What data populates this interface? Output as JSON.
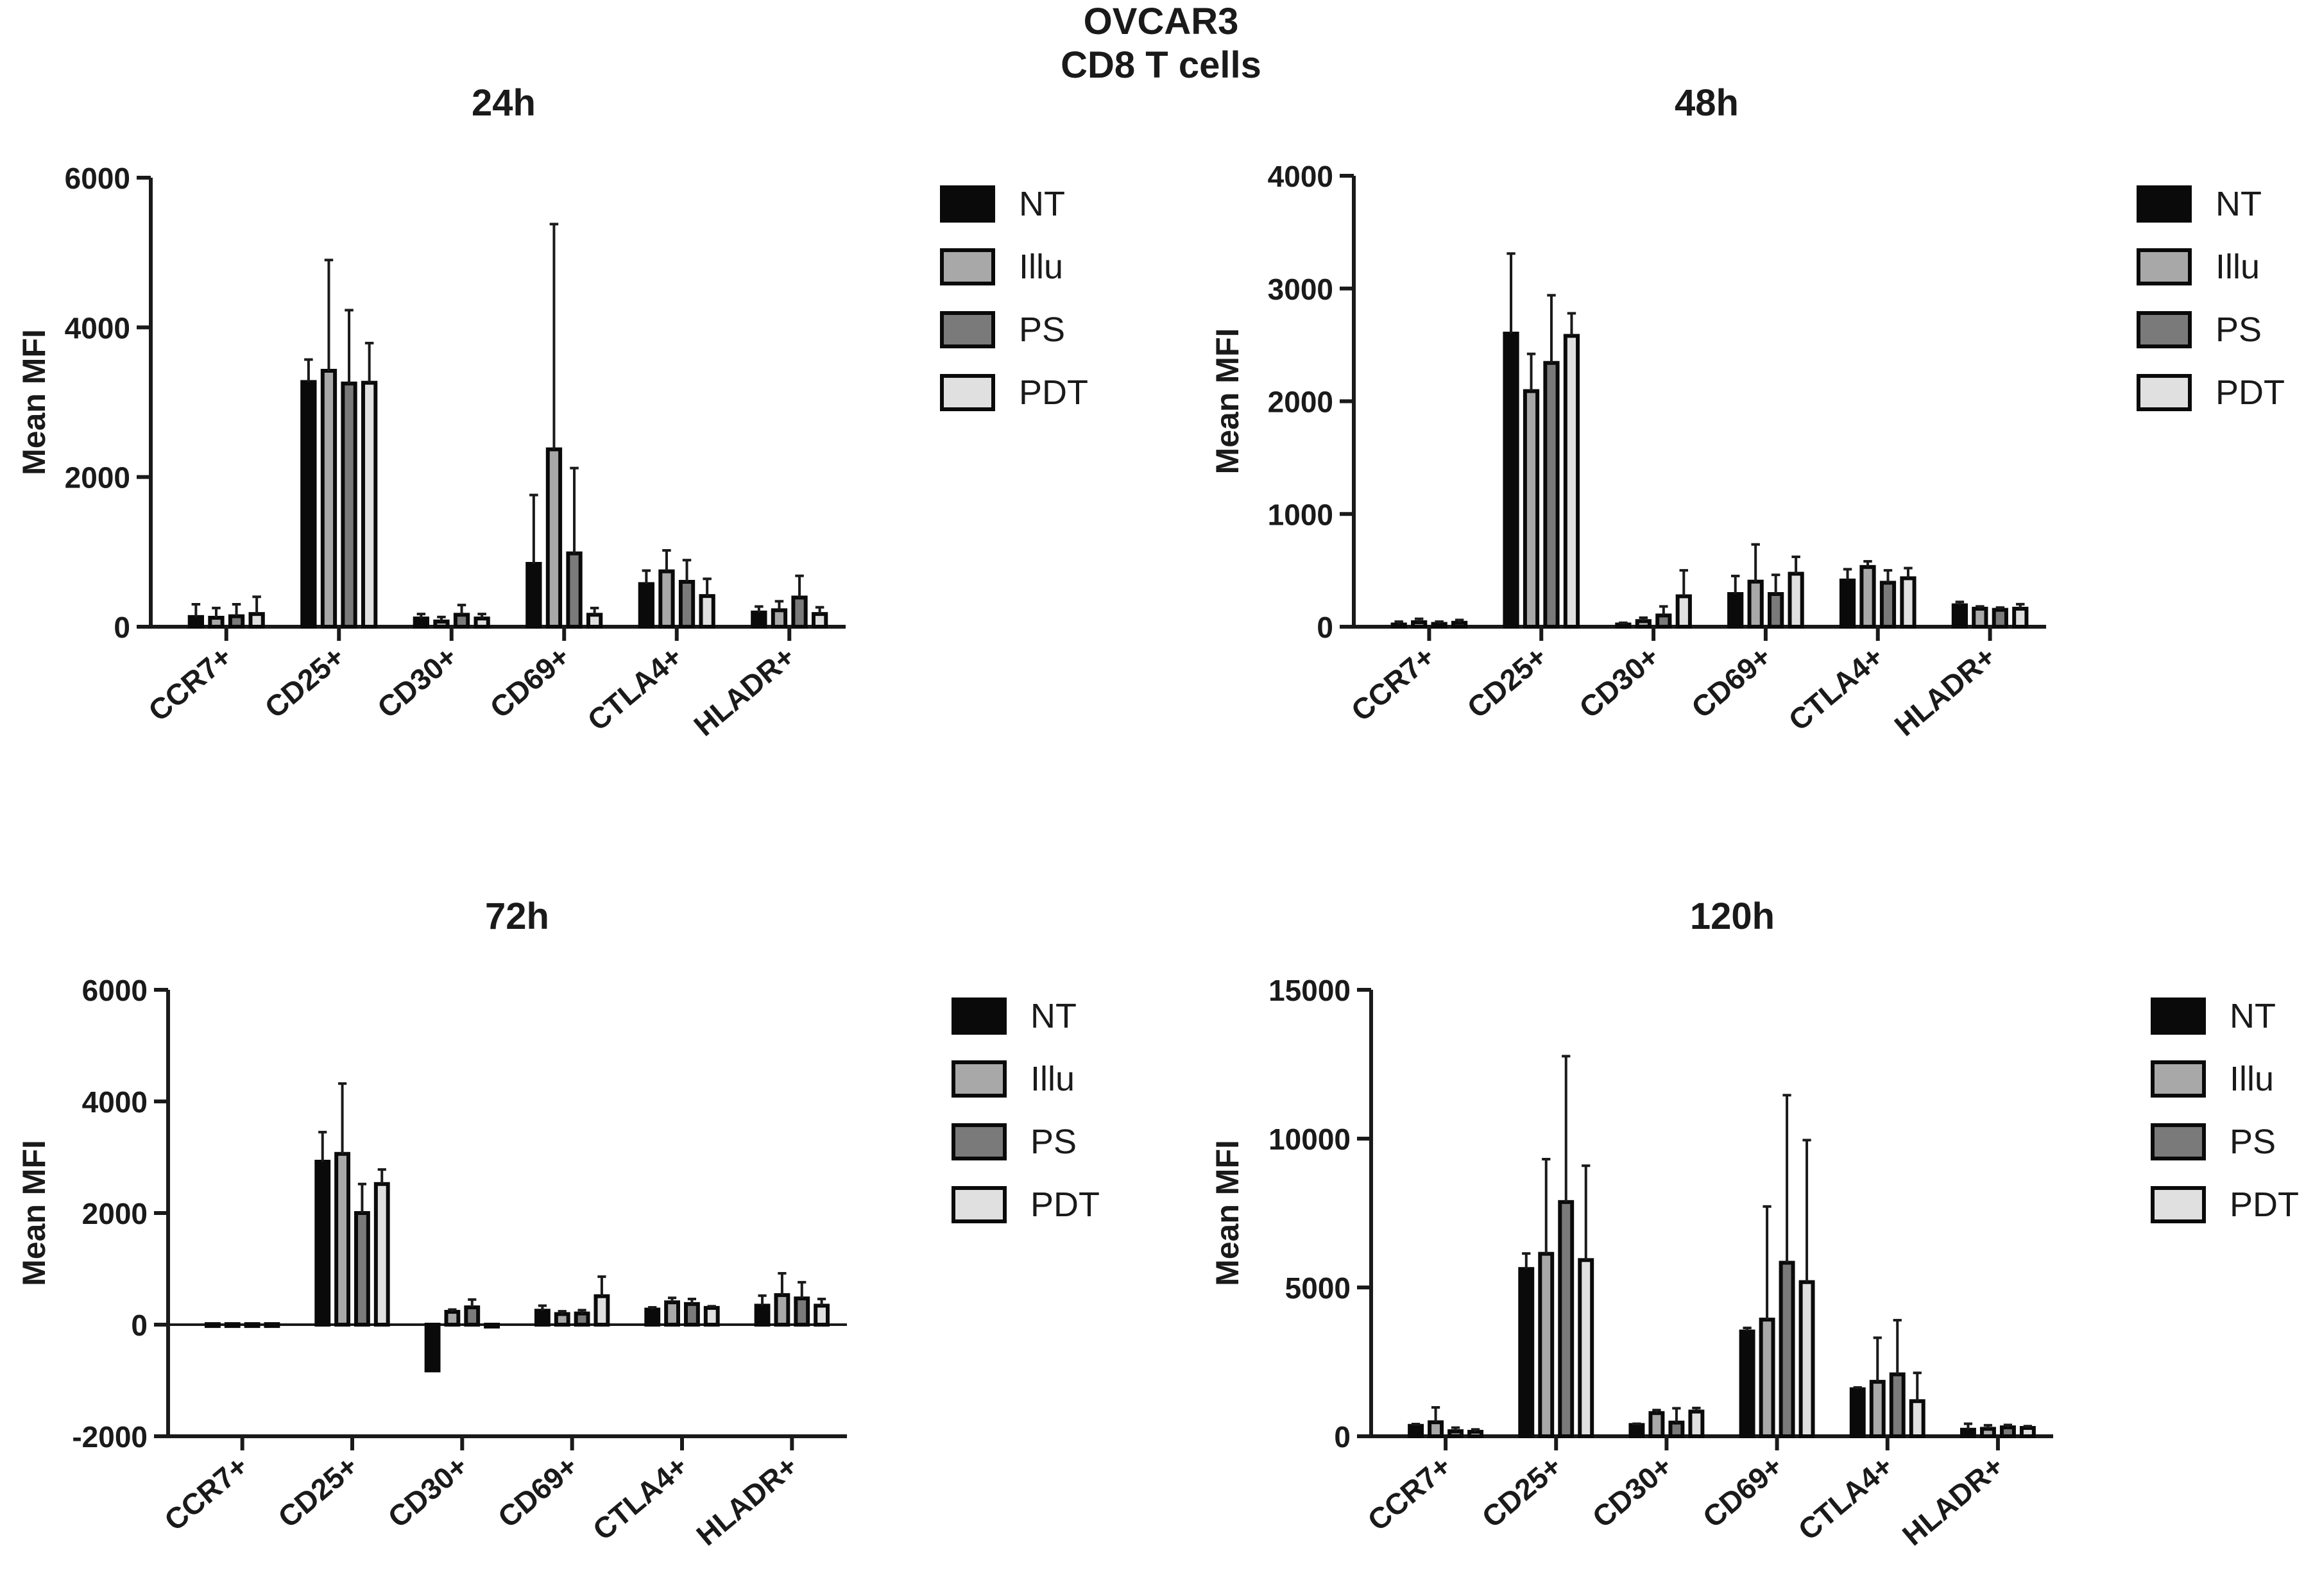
{
  "figure": {
    "title_line1": "OVCAR3",
    "title_line2": "CD8 T cells"
  },
  "legend_entries": [
    {
      "name": "NT",
      "fill": "#0a0a0a"
    },
    {
      "name": "Illu",
      "fill": "#a8a8a8"
    },
    {
      "name": "PS",
      "fill": "#7a7a7a"
    },
    {
      "name": "PDT",
      "fill": "#e0e0e0"
    }
  ],
  "chart_data": [
    {
      "type": "bar",
      "title": "24h",
      "ylabel": "Mean MFI",
      "xlabel": "",
      "ylim": [
        0,
        6000
      ],
      "yticks": [
        0,
        2000,
        4000,
        6000
      ],
      "tick_labels": [
        "0",
        "2000",
        "4000",
        "6000"
      ],
      "categories": [
        "CCR7+",
        "CD25+",
        "CD30+",
        "CD69+",
        "CTLA4+",
        "HLADR+"
      ],
      "series": [
        {
          "name": "NT",
          "values": [
            130,
            3270,
            110,
            840,
            570,
            190
          ],
          "errors": [
            170,
            300,
            60,
            920,
            180,
            80
          ]
        },
        {
          "name": "Illu",
          "values": [
            120,
            3420,
            70,
            2370,
            740,
            220
          ],
          "errors": [
            130,
            1480,
            60,
            3010,
            280,
            120
          ]
        },
        {
          "name": "PS",
          "values": [
            140,
            3250,
            160,
            980,
            600,
            390
          ],
          "errors": [
            160,
            980,
            130,
            1140,
            290,
            290
          ]
        },
        {
          "name": "PDT",
          "values": [
            170,
            3260,
            110,
            160,
            410,
            170
          ],
          "errors": [
            230,
            530,
            60,
            90,
            230,
            90
          ]
        }
      ]
    },
    {
      "type": "bar",
      "title": "48h",
      "ylabel": "Mean MFI",
      "xlabel": "",
      "ylim": [
        0,
        4000
      ],
      "yticks": [
        0,
        1000,
        2000,
        3000,
        4000
      ],
      "tick_labels": [
        "0",
        "1000",
        "2000",
        "3000",
        "4000"
      ],
      "categories": [
        "CCR7+",
        "CD25+",
        "CD30+",
        "CD69+",
        "CTLA4+",
        "HLADR+"
      ],
      "series": [
        {
          "name": "NT",
          "values": [
            20,
            2600,
            20,
            290,
            410,
            190
          ],
          "errors": [
            25,
            710,
            15,
            160,
            100,
            30
          ]
        },
        {
          "name": "Illu",
          "values": [
            40,
            2090,
            50,
            400,
            530,
            160
          ],
          "errors": [
            30,
            330,
            30,
            330,
            50,
            20
          ]
        },
        {
          "name": "PS",
          "values": [
            25,
            2340,
            100,
            290,
            390,
            150
          ],
          "errors": [
            20,
            600,
            80,
            170,
            110,
            20
          ]
        },
        {
          "name": "PDT",
          "values": [
            35,
            2580,
            270,
            470,
            430,
            160
          ],
          "errors": [
            25,
            200,
            230,
            150,
            90,
            40
          ]
        }
      ]
    },
    {
      "type": "bar",
      "title": "72h",
      "ylabel": "Mean MFI",
      "xlabel": "",
      "ylim": [
        -2000,
        6000
      ],
      "yticks": [
        -2000,
        0,
        2000,
        4000,
        6000
      ],
      "tick_labels": [
        "-2000",
        "0",
        "2000",
        "4000",
        "6000"
      ],
      "categories": [
        "CCR7+",
        "CD25+",
        "CD30+",
        "CD69+",
        "CTLA4+",
        "HLADR+"
      ],
      "series": [
        {
          "name": "NT",
          "values": [
            10,
            2920,
            -820,
            250,
            270,
            340
          ],
          "errors": [
            0,
            530,
            0,
            90,
            40,
            180
          ]
        },
        {
          "name": "Illu",
          "values": [
            10,
            3060,
            230,
            190,
            400,
            530
          ],
          "errors": [
            0,
            1260,
            40,
            50,
            80,
            390
          ]
        },
        {
          "name": "PS",
          "values": [
            10,
            2000,
            310,
            200,
            370,
            470
          ],
          "errors": [
            0,
            520,
            140,
            60,
            90,
            290
          ]
        },
        {
          "name": "PDT",
          "values": [
            10,
            2520,
            0,
            510,
            300,
            340
          ],
          "errors": [
            0,
            260,
            0,
            350,
            30,
            120
          ]
        }
      ]
    },
    {
      "type": "bar",
      "title": "120h",
      "ylabel": "Mean MFI",
      "xlabel": "",
      "ylim": [
        0,
        15000
      ],
      "yticks": [
        0,
        5000,
        10000,
        15000
      ],
      "tick_labels": [
        "0",
        "5000",
        "10000",
        "15000"
      ],
      "categories": [
        "CCR7+",
        "CD25+",
        "CD30+",
        "CD69+",
        "CTLA4+",
        "HLADR+"
      ],
      "series": [
        {
          "name": "NT",
          "values": [
            350,
            5620,
            380,
            3520,
            1580,
            220
          ],
          "errors": [
            60,
            520,
            40,
            120,
            60,
            200
          ]
        },
        {
          "name": "Illu",
          "values": [
            470,
            6130,
            780,
            3920,
            1830,
            250
          ],
          "errors": [
            500,
            3180,
            100,
            3800,
            1480,
            120
          ]
        },
        {
          "name": "PS",
          "values": [
            170,
            7870,
            460,
            5830,
            2080,
            300
          ],
          "errors": [
            120,
            4900,
            480,
            5630,
            1820,
            80
          ]
        },
        {
          "name": "PDT",
          "values": [
            150,
            5920,
            830,
            5180,
            1180,
            280
          ],
          "errors": [
            80,
            3170,
            120,
            4770,
            950,
            60
          ]
        }
      ]
    }
  ]
}
